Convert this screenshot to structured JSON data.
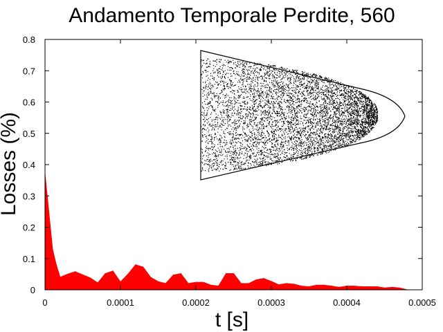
{
  "chart_data": {
    "type": "area",
    "title": "Andamento Temporale Perdite, 560",
    "xlabel": "t [s]",
    "ylabel": "Losses (%)",
    "xlim": [
      0,
      0.0005
    ],
    "ylim": [
      0,
      0.8
    ],
    "x_ticks": [
      "0",
      "0.0001",
      "0.0002",
      "0.0003",
      "0.0004",
      "0.0005"
    ],
    "y_ticks": [
      "0",
      "0.1",
      "0.2",
      "0.3",
      "0.4",
      "0.5",
      "0.6",
      "0.7",
      "0.8"
    ],
    "grid": false,
    "legend": "none",
    "series": [
      {
        "color": "#ff0000",
        "x": [
          0,
          5e-06,
          1e-05,
          1.5e-05,
          2e-05,
          2.5e-05,
          3e-05,
          4e-05,
          5e-05,
          6e-05,
          7e-05,
          8e-05,
          9e-05,
          0.0001,
          0.00011,
          0.00012,
          0.00013,
          0.00014,
          0.00015,
          0.00016,
          0.00017,
          0.00018,
          0.00019,
          0.0002,
          0.00021,
          0.00022,
          0.00023,
          0.00024,
          0.00025,
          0.00026,
          0.00027,
          0.00028,
          0.00029,
          0.0003,
          0.00031,
          0.00032,
          0.00033,
          0.00034,
          0.00035,
          0.00036,
          0.00037,
          0.00038,
          0.00039,
          0.0004,
          0.00041,
          0.00042,
          0.00043,
          0.00044,
          0.00045,
          0.00046,
          0.00047,
          0.00048
        ],
        "values": [
          0.37,
          0.25,
          0.13,
          0.08,
          0.04,
          0.045,
          0.05,
          0.058,
          0.048,
          0.038,
          0.022,
          0.052,
          0.06,
          0.025,
          0.05,
          0.08,
          0.073,
          0.04,
          0.026,
          0.02,
          0.047,
          0.052,
          0.02,
          0.024,
          0.024,
          0.015,
          0.012,
          0.052,
          0.052,
          0.02,
          0.02,
          0.032,
          0.036,
          0.027,
          0.016,
          0.02,
          0.018,
          0.012,
          0.01,
          0.015,
          0.015,
          0.012,
          0.008,
          0.012,
          0.012,
          0.01,
          0.01,
          0.01,
          0.006,
          0.008,
          0.006,
          0.0
        ]
      }
    ]
  },
  "inset": {
    "description": "phase-space scatter (black points inside a bullet-shaped outline)",
    "color": "#000000"
  }
}
